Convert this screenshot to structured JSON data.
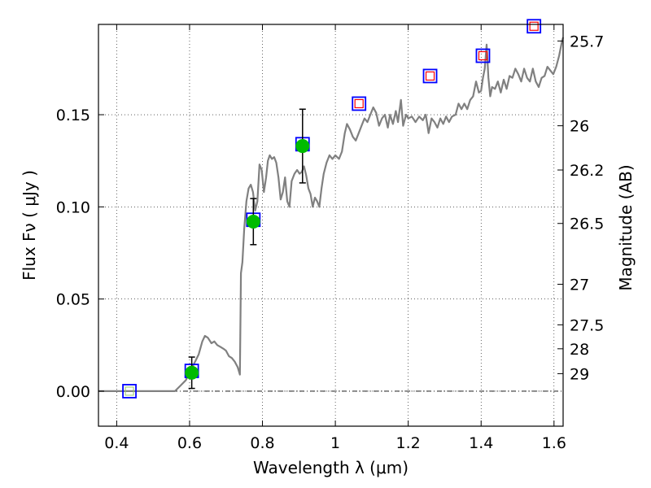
{
  "chart_data": {
    "type": "scatter",
    "xlabel": "Wavelength  λ (μm)",
    "ylabel": "Flux  Fν  ( μJy )",
    "y2label": "Magnitude (AB)",
    "xlim": [
      0.35,
      1.625
    ],
    "ylim": [
      -0.019,
      0.199
    ],
    "grid": true,
    "x_ticks": [
      0.4,
      0.6,
      0.8,
      1.0,
      1.2,
      1.4,
      1.6
    ],
    "x_tick_labels": [
      "0.4",
      "0.6",
      "0.8",
      "1",
      "1.2",
      "1.4",
      "1.6"
    ],
    "y_ticks": [
      0.0,
      0.05,
      0.1,
      0.15
    ],
    "y_tick_labels": [
      "0.00",
      "0.05",
      "0.10",
      "0.15"
    ],
    "mag_ticks": [
      {
        "label": "25.7",
        "flux": 0.19
      },
      {
        "label": "26",
        "flux": 0.144
      },
      {
        "label": "26.2",
        "flux": 0.12
      },
      {
        "label": "26.5",
        "flux": 0.091
      },
      {
        "label": "27",
        "flux": 0.058
      },
      {
        "label": "27.5",
        "flux": 0.036
      },
      {
        "label": "28",
        "flux": 0.023
      },
      {
        "label": "29",
        "flux": 0.0095
      }
    ],
    "series": [
      {
        "kind": "model_spectrum",
        "color": "#808080",
        "points": [
          [
            0.35,
            0.0
          ],
          [
            0.56,
            0.0
          ],
          [
            0.575,
            0.003
          ],
          [
            0.59,
            0.006
          ],
          [
            0.605,
            0.012
          ],
          [
            0.615,
            0.016
          ],
          [
            0.625,
            0.02
          ],
          [
            0.635,
            0.027
          ],
          [
            0.642,
            0.03
          ],
          [
            0.65,
            0.029
          ],
          [
            0.66,
            0.026
          ],
          [
            0.668,
            0.027
          ],
          [
            0.676,
            0.025
          ],
          [
            0.685,
            0.024
          ],
          [
            0.693,
            0.023
          ],
          [
            0.7,
            0.022
          ],
          [
            0.708,
            0.019
          ],
          [
            0.716,
            0.018
          ],
          [
            0.724,
            0.016
          ],
          [
            0.732,
            0.013
          ],
          [
            0.738,
            0.009
          ],
          [
            0.741,
            0.064
          ],
          [
            0.745,
            0.07
          ],
          [
            0.75,
            0.088
          ],
          [
            0.756,
            0.103
          ],
          [
            0.762,
            0.11
          ],
          [
            0.768,
            0.112
          ],
          [
            0.774,
            0.108
          ],
          [
            0.78,
            0.098
          ],
          [
            0.786,
            0.103
          ],
          [
            0.792,
            0.123
          ],
          [
            0.798,
            0.12
          ],
          [
            0.804,
            0.108
          ],
          [
            0.81,
            0.116
          ],
          [
            0.815,
            0.125
          ],
          [
            0.82,
            0.128
          ],
          [
            0.826,
            0.126
          ],
          [
            0.832,
            0.127
          ],
          [
            0.838,
            0.124
          ],
          [
            0.844,
            0.116
          ],
          [
            0.85,
            0.104
          ],
          [
            0.856,
            0.108
          ],
          [
            0.862,
            0.116
          ],
          [
            0.868,
            0.103
          ],
          [
            0.874,
            0.1
          ],
          [
            0.88,
            0.114
          ],
          [
            0.888,
            0.118
          ],
          [
            0.895,
            0.12
          ],
          [
            0.902,
            0.118
          ],
          [
            0.908,
            0.119
          ],
          [
            0.914,
            0.122
          ],
          [
            0.92,
            0.117
          ],
          [
            0.926,
            0.11
          ],
          [
            0.932,
            0.107
          ],
          [
            0.938,
            0.1
          ],
          [
            0.944,
            0.105
          ],
          [
            0.95,
            0.103
          ],
          [
            0.956,
            0.1
          ],
          [
            0.962,
            0.11
          ],
          [
            0.968,
            0.118
          ],
          [
            0.976,
            0.124
          ],
          [
            0.984,
            0.128
          ],
          [
            0.992,
            0.126
          ],
          [
            1.0,
            0.128
          ],
          [
            1.01,
            0.126
          ],
          [
            1.018,
            0.13
          ],
          [
            1.026,
            0.14
          ],
          [
            1.032,
            0.145
          ],
          [
            1.04,
            0.142
          ],
          [
            1.048,
            0.138
          ],
          [
            1.056,
            0.136
          ],
          [
            1.064,
            0.14
          ],
          [
            1.072,
            0.144
          ],
          [
            1.08,
            0.148
          ],
          [
            1.088,
            0.146
          ],
          [
            1.096,
            0.15
          ],
          [
            1.104,
            0.154
          ],
          [
            1.112,
            0.151
          ],
          [
            1.12,
            0.144
          ],
          [
            1.128,
            0.148
          ],
          [
            1.136,
            0.15
          ],
          [
            1.144,
            0.143
          ],
          [
            1.15,
            0.15
          ],
          [
            1.158,
            0.145
          ],
          [
            1.166,
            0.152
          ],
          [
            1.172,
            0.146
          ],
          [
            1.18,
            0.158
          ],
          [
            1.186,
            0.144
          ],
          [
            1.194,
            0.15
          ],
          [
            1.2,
            0.148
          ],
          [
            1.21,
            0.149
          ],
          [
            1.22,
            0.146
          ],
          [
            1.23,
            0.149
          ],
          [
            1.24,
            0.147
          ],
          [
            1.248,
            0.15
          ],
          [
            1.256,
            0.14
          ],
          [
            1.264,
            0.148
          ],
          [
            1.272,
            0.146
          ],
          [
            1.28,
            0.143
          ],
          [
            1.288,
            0.148
          ],
          [
            1.296,
            0.145
          ],
          [
            1.304,
            0.149
          ],
          [
            1.312,
            0.146
          ],
          [
            1.32,
            0.149
          ],
          [
            1.33,
            0.15
          ],
          [
            1.338,
            0.156
          ],
          [
            1.346,
            0.153
          ],
          [
            1.354,
            0.156
          ],
          [
            1.362,
            0.153
          ],
          [
            1.37,
            0.158
          ],
          [
            1.378,
            0.16
          ],
          [
            1.386,
            0.168
          ],
          [
            1.394,
            0.162
          ],
          [
            1.4,
            0.163
          ],
          [
            1.405,
            0.17
          ],
          [
            1.41,
            0.175
          ],
          [
            1.415,
            0.188
          ],
          [
            1.42,
            0.17
          ],
          [
            1.425,
            0.16
          ],
          [
            1.43,
            0.165
          ],
          [
            1.438,
            0.164
          ],
          [
            1.446,
            0.168
          ],
          [
            1.454,
            0.162
          ],
          [
            1.462,
            0.169
          ],
          [
            1.47,
            0.164
          ],
          [
            1.478,
            0.171
          ],
          [
            1.486,
            0.17
          ],
          [
            1.494,
            0.175
          ],
          [
            1.502,
            0.172
          ],
          [
            1.51,
            0.168
          ],
          [
            1.518,
            0.175
          ],
          [
            1.526,
            0.17
          ],
          [
            1.534,
            0.168
          ],
          [
            1.542,
            0.175
          ],
          [
            1.55,
            0.168
          ],
          [
            1.558,
            0.165
          ],
          [
            1.566,
            0.17
          ],
          [
            1.574,
            0.171
          ],
          [
            1.582,
            0.176
          ],
          [
            1.59,
            0.174
          ],
          [
            1.598,
            0.172
          ],
          [
            1.606,
            0.176
          ],
          [
            1.614,
            0.182
          ],
          [
            1.622,
            0.19
          ],
          [
            1.625,
            0.192
          ]
        ]
      },
      {
        "kind": "model_photometry",
        "marker": "square",
        "edge_color": "#0000ff",
        "points": [
          {
            "x": 0.435,
            "y": 0.0
          },
          {
            "x": 0.606,
            "y": 0.011
          },
          {
            "x": 0.775,
            "y": 0.093
          },
          {
            "x": 0.91,
            "y": 0.134
          },
          {
            "x": 1.065,
            "y": 0.156
          },
          {
            "x": 1.26,
            "y": 0.171
          },
          {
            "x": 1.405,
            "y": 0.182
          },
          {
            "x": 1.545,
            "y": 0.198
          }
        ]
      },
      {
        "kind": "upper_limits",
        "marker": "small-square",
        "edge_color": "#ff0000",
        "points": [
          {
            "x": 1.065,
            "y": 0.156
          },
          {
            "x": 1.26,
            "y": 0.171
          },
          {
            "x": 1.405,
            "y": 0.182
          },
          {
            "x": 1.545,
            "y": 0.198
          }
        ]
      },
      {
        "kind": "observed",
        "marker": "circle",
        "color": "#00bb00",
        "points": [
          {
            "x": 0.606,
            "y": 0.01,
            "err": 0.0085
          },
          {
            "x": 0.775,
            "y": 0.092,
            "err": 0.0125
          },
          {
            "x": 0.91,
            "y": 0.133,
            "err": 0.02
          }
        ]
      }
    ],
    "zero_line": {
      "y": 0.0,
      "style": "dash-dot"
    }
  }
}
